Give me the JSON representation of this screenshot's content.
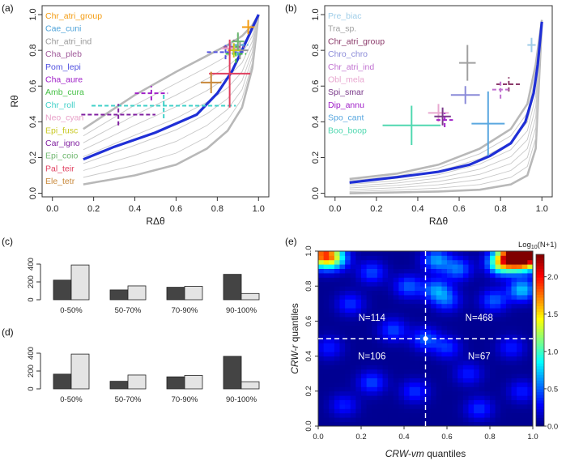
{
  "chart_data": [
    {
      "panel": "(a)",
      "type": "line",
      "xlabel": "RΔθ",
      "ylabel": "Rθ",
      "xlim": [
        -0.05,
        1.05
      ],
      "ylim": [
        -0.02,
        1.05
      ],
      "xticks": [
        "0.0",
        "0.2",
        "0.4",
        "0.6",
        "0.8",
        "1.0"
      ],
      "yticks": [
        "0.0",
        "0.2",
        "0.4",
        "0.6",
        "0.8",
        "1.0"
      ],
      "gray_envelope_x": [
        0.15,
        0.4,
        0.6,
        0.75,
        0.85,
        0.92,
        0.97,
        1.0
      ],
      "gray_upper_y": [
        0.36,
        0.55,
        0.68,
        0.77,
        0.83,
        0.88,
        0.94,
        1.0
      ],
      "gray_lower_y": [
        0.05,
        0.1,
        0.16,
        0.25,
        0.35,
        0.48,
        0.7,
        1.0
      ],
      "blue_x": [
        0.15,
        0.3,
        0.5,
        0.7,
        0.8,
        0.87,
        0.92,
        0.96,
        1.0
      ],
      "blue_y": [
        0.19,
        0.26,
        0.34,
        0.44,
        0.56,
        0.68,
        0.8,
        0.9,
        1.0
      ],
      "species": [
        {
          "name": "Chr_atri_group",
          "color": "#f39c12",
          "x": 0.95,
          "y": 0.93,
          "xerr": 0.03,
          "yerr": 0.04,
          "style": "solid"
        },
        {
          "name": "Cae_cuni",
          "color": "#4fa3d9",
          "x": 0.9,
          "y": 0.83,
          "xerr": 0.05,
          "yerr": 0.06,
          "style": "dashed"
        },
        {
          "name": "Chr_atri_ind",
          "color": "#999999",
          "x": 0.91,
          "y": 0.8,
          "xerr": 0.04,
          "yerr": 0.05,
          "style": "solid"
        },
        {
          "name": "Cha_pleb",
          "color": "#a05a9a",
          "x": 0.88,
          "y": 0.82,
          "xerr": 0.05,
          "yerr": 0.04,
          "style": "dashed"
        },
        {
          "name": "Pom_lepi",
          "color": "#5050e0",
          "x": 0.84,
          "y": 0.79,
          "xerr": 0.09,
          "yerr": 0.04,
          "style": "dashed"
        },
        {
          "name": "Cha_aure",
          "color": "#a020c8",
          "x": 0.48,
          "y": 0.56,
          "xerr": 0.08,
          "yerr": 0.04,
          "style": "dashed"
        },
        {
          "name": "Amb_cura",
          "color": "#44c044",
          "x": 0.89,
          "y": 0.78,
          "xerr": 0.05,
          "yerr": 0.05,
          "style": "dashed"
        },
        {
          "name": "Chr_roll",
          "color": "#40d0c8",
          "x": 0.54,
          "y": 0.49,
          "xerr": 0.35,
          "yerr": 0.07,
          "style": "dashed"
        },
        {
          "name": "Neo_cyan",
          "color": "#e8a0c8",
          "x": 0.86,
          "y": 0.81,
          "xerr": 0.04,
          "yerr": 0.04,
          "style": "solid"
        },
        {
          "name": "Epi_fusc",
          "color": "#c8c820",
          "x": 0.88,
          "y": 0.8,
          "xerr": 0.03,
          "yerr": 0.04,
          "style": "solid"
        },
        {
          "name": "Car_igno",
          "color": "#8020a0",
          "x": 0.32,
          "y": 0.44,
          "xerr": 0.18,
          "yerr": 0.06,
          "style": "dashed"
        },
        {
          "name": "Epi_coio",
          "color": "#70b870",
          "x": 0.9,
          "y": 0.85,
          "xerr": 0.03,
          "yerr": 0.05,
          "style": "solid"
        },
        {
          "name": "Pal_teir",
          "color": "#e04060",
          "x": 0.86,
          "y": 0.67,
          "xerr": 0.1,
          "yerr": 0.19,
          "style": "solid"
        },
        {
          "name": "Ele_tetr",
          "color": "#c8883a",
          "x": 0.77,
          "y": 0.62,
          "xerr": 0.05,
          "yerr": 0.06,
          "style": "solid"
        }
      ]
    },
    {
      "panel": "(b)",
      "type": "line",
      "xlabel": "RΔθ",
      "ylabel": "",
      "xlim": [
        -0.05,
        1.05
      ],
      "ylim": [
        -0.02,
        1.05
      ],
      "xticks": [
        "0.0",
        "0.2",
        "0.4",
        "0.6",
        "0.8",
        "1.0"
      ],
      "yticks": [
        "0.0",
        "0.2",
        "0.4",
        "0.6",
        "0.8",
        "1.0"
      ],
      "gray_envelope_x": [
        0.07,
        0.3,
        0.5,
        0.7,
        0.85,
        0.93,
        0.97,
        1.0
      ],
      "gray_upper_y": [
        0.08,
        0.11,
        0.16,
        0.25,
        0.36,
        0.5,
        0.72,
        0.97
      ],
      "gray_lower_y": [
        0.0,
        0.005,
        0.01,
        0.02,
        0.05,
        0.1,
        0.25,
        0.95
      ],
      "blue_x": [
        0.07,
        0.3,
        0.5,
        0.65,
        0.75,
        0.85,
        0.92,
        0.96,
        0.98,
        1.0
      ],
      "blue_y": [
        0.06,
        0.09,
        0.12,
        0.16,
        0.21,
        0.28,
        0.4,
        0.56,
        0.72,
        0.96
      ],
      "species": [
        {
          "name": "Pre_biac",
          "color": "#9fcde8",
          "x": 0.95,
          "y": 0.83,
          "xerr": 0.02,
          "yerr": 0.04,
          "style": "solid"
        },
        {
          "name": "Tra_sp.",
          "color": "#a0a0a0",
          "x": 0.64,
          "y": 0.73,
          "xerr": 0.04,
          "yerr": 0.1,
          "style": "solid"
        },
        {
          "name": "Chr_atri_group",
          "color": "#8b3a6a",
          "x": 0.84,
          "y": 0.61,
          "xerr": 0.06,
          "yerr": 0.04,
          "style": "dashed"
        },
        {
          "name": "Chro_chro",
          "color": "#8a8ad8",
          "x": 0.63,
          "y": 0.55,
          "xerr": 0.07,
          "yerr": 0.05,
          "style": "solid"
        },
        {
          "name": "Chr_atri_ind",
          "color": "#c070d0",
          "x": 0.8,
          "y": 0.58,
          "xerr": 0.04,
          "yerr": 0.05,
          "style": "dashed"
        },
        {
          "name": "Obl_mela",
          "color": "#e8a8d0",
          "x": 0.5,
          "y": 0.45,
          "xerr": 0.05,
          "yerr": 0.05,
          "style": "solid"
        },
        {
          "name": "Spi_smar",
          "color": "#7a3a8a",
          "x": 0.52,
          "y": 0.43,
          "xerr": 0.04,
          "yerr": 0.05,
          "style": "solid"
        },
        {
          "name": "Dip_annu",
          "color": "#a020c8",
          "x": 0.53,
          "y": 0.41,
          "xerr": 0.04,
          "yerr": 0.04,
          "style": "dashed"
        },
        {
          "name": "Spo_cant",
          "color": "#5aa8e0",
          "x": 0.74,
          "y": 0.39,
          "xerr": 0.08,
          "yerr": 0.18,
          "style": "solid"
        },
        {
          "name": "Boo_boop",
          "color": "#50d8b0",
          "x": 0.37,
          "y": 0.38,
          "xerr": 0.14,
          "yerr": 0.11,
          "style": "solid"
        }
      ]
    },
    {
      "panel": "(c)",
      "type": "bar",
      "categories": [
        "0-50%",
        "50-70%",
        "70-90%",
        "90-100%"
      ],
      "series": [
        {
          "name": "dark",
          "color": "#444444",
          "values": [
            220,
            110,
            140,
            285
          ]
        },
        {
          "name": "light",
          "color": "#e4e4e4",
          "values": [
            390,
            155,
            150,
            70
          ]
        }
      ],
      "ylim": [
        0,
        400
      ],
      "yticks": [
        "0",
        "200",
        "400"
      ]
    },
    {
      "panel": "(d)",
      "type": "bar",
      "categories": [
        "0-50%",
        "50-70%",
        "70-90%",
        "90-100%"
      ],
      "series": [
        {
          "name": "dark",
          "color": "#444444",
          "values": [
            165,
            85,
            135,
            365
          ]
        },
        {
          "name": "light",
          "color": "#e4e4e4",
          "values": [
            390,
            155,
            150,
            80
          ]
        }
      ],
      "ylim": [
        0,
        400
      ],
      "yticks": [
        "0",
        "200",
        "400"
      ]
    },
    {
      "panel": "(e)",
      "type": "heatmap",
      "xlabel_italic": "CRW-vm",
      "xlabel_rest": " quantiles",
      "ylabel_italic": "CRW-r",
      "ylabel_rest": " quantiles",
      "xticks": [
        "0.0",
        "0.2",
        "0.4",
        "0.6",
        "0.8",
        "1.0"
      ],
      "yticks": [
        "0.0",
        "0.2",
        "0.4",
        "0.6",
        "0.8",
        "1.0"
      ],
      "colorbar_title_prefix": "Log",
      "colorbar_title_sub": "10",
      "colorbar_title_suffix": "(N+1)",
      "colorbar_ticks": [
        "0.0",
        "0.5",
        "1.0",
        "1.5",
        "2.0"
      ],
      "colorbar_max": 2.3,
      "split": [
        0.5,
        0.5
      ],
      "quadrants": [
        {
          "label": "N=114",
          "x": 0.25,
          "y": 0.62
        },
        {
          "label": "N=468",
          "x": 0.75,
          "y": 0.62
        },
        {
          "label": "N=106",
          "x": 0.25,
          "y": 0.4
        },
        {
          "label": "N=67",
          "x": 0.75,
          "y": 0.4
        }
      ],
      "hotspots": [
        {
          "x": 0.97,
          "y": 0.97,
          "v": 2.3
        },
        {
          "x": 0.9,
          "y": 0.97,
          "v": 1.6
        },
        {
          "x": 0.85,
          "y": 0.93,
          "v": 0.9
        },
        {
          "x": 0.02,
          "y": 0.98,
          "v": 1.6
        },
        {
          "x": 0.08,
          "y": 0.96,
          "v": 0.7
        },
        {
          "x": 0.55,
          "y": 0.95,
          "v": 0.6
        },
        {
          "x": 0.65,
          "y": 0.9,
          "v": 0.5
        },
        {
          "x": 0.55,
          "y": 0.78,
          "v": 0.55
        },
        {
          "x": 0.6,
          "y": 0.72,
          "v": 0.4
        },
        {
          "x": 0.82,
          "y": 0.72,
          "v": 0.45
        },
        {
          "x": 0.95,
          "y": 0.78,
          "v": 0.7
        },
        {
          "x": 0.42,
          "y": 0.8,
          "v": 0.45
        },
        {
          "x": 0.25,
          "y": 0.88,
          "v": 0.4
        },
        {
          "x": 0.15,
          "y": 0.7,
          "v": 0.35
        },
        {
          "x": 0.35,
          "y": 0.55,
          "v": 0.4
        },
        {
          "x": 0.5,
          "y": 0.5,
          "v": 0.45
        },
        {
          "x": 0.6,
          "y": 0.45,
          "v": 0.35
        },
        {
          "x": 0.7,
          "y": 0.3,
          "v": 0.3
        },
        {
          "x": 0.25,
          "y": 0.25,
          "v": 0.4
        },
        {
          "x": 0.45,
          "y": 0.2,
          "v": 0.35
        },
        {
          "x": 0.12,
          "y": 0.12,
          "v": 0.3
        },
        {
          "x": 0.75,
          "y": 0.1,
          "v": 0.35
        },
        {
          "x": 0.95,
          "y": 0.2,
          "v": 0.3
        },
        {
          "x": 0.9,
          "y": 0.45,
          "v": 0.3
        },
        {
          "x": 0.05,
          "y": 0.45,
          "v": 0.3
        }
      ]
    }
  ]
}
